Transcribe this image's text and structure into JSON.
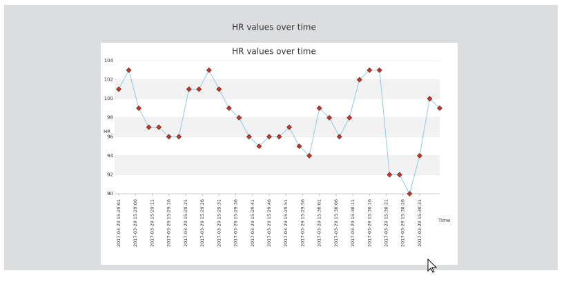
{
  "header": {
    "title": "HR values over time"
  },
  "chart_data": {
    "type": "line",
    "title": "HR values over time",
    "x_label": "Time",
    "y_label": "HR",
    "x": [
      "2017-03-29 15:29:01",
      "2017-03-29 15:29:04",
      "2017-03-29 15:29:07",
      "2017-03-29 15:29:10",
      "2017-03-29 15:29:13",
      "2017-03-29 15:29:16",
      "2017-03-29 15:29:19",
      "2017-03-29 15:29:22",
      "2017-03-29 15:29:25",
      "2017-03-29 15:29:28",
      "2017-03-29 15:29:31",
      "2017-03-29 15:29:34",
      "2017-03-29 15:29:37",
      "2017-03-29 15:29:40",
      "2017-03-29 15:29:43",
      "2017-03-29 15:29:46",
      "2017-03-29 15:29:49",
      "2017-03-29 15:29:52",
      "2017-03-29 15:29:55",
      "2017-03-29 15:29:58",
      "2017-03-29 15:30:01",
      "2017-03-29 15:30:04",
      "2017-03-29 15:30:07",
      "2017-03-29 15:30:10",
      "2017-03-29 15:30:13",
      "2017-03-29 15:30:16",
      "2017-03-29 15:30:19",
      "2017-03-29 15:30:22",
      "2017-03-29 15:30:25",
      "2017-03-29 15:30:28",
      "2017-03-29 15:30:31",
      "2017-03-29 15:30:34",
      "2017-03-29 15:30:37"
    ],
    "series": [
      {
        "name": "HR",
        "line_color": "#8ecae6",
        "marker_color": "#c0392b",
        "values": [
          101,
          103,
          99,
          97,
          97,
          96,
          96,
          101,
          101,
          103,
          101,
          99,
          98,
          96,
          95,
          96,
          96,
          97,
          95,
          94,
          99,
          98,
          96,
          98,
          102,
          103,
          103,
          92,
          92,
          90,
          94,
          100,
          99
        ]
      }
    ],
    "xlim": [
      "2017-03-29 15:29:01",
      "2017-03-29 15:30:37"
    ],
    "xticks": [
      "2017-03-29 15:29:01",
      "2017-03-29 15:29:06",
      "2017-03-29 15:29:11",
      "2017-03-29 15:29:16",
      "2017-03-29 15:29:21",
      "2017-03-29 15:29:26",
      "2017-03-29 15:29:31",
      "2017-03-29 15:29:36",
      "2017-03-29 15:29:41",
      "2017-03-29 15:29:46",
      "2017-03-29 15:29:51",
      "2017-03-29 15:29:56",
      "2017-03-29 15:30:01",
      "2017-03-29 15:30:06",
      "2017-03-29 15:30:11",
      "2017-03-29 15:30:16",
      "2017-03-29 15:30:21",
      "2017-03-29 15:30:26",
      "2017-03-29 15:30:31"
    ],
    "ylim": [
      90,
      104
    ],
    "yticks": [
      90,
      92,
      94,
      96,
      98,
      100,
      102,
      104
    ],
    "grid": "bands",
    "band_color": "#f2f2f2"
  }
}
